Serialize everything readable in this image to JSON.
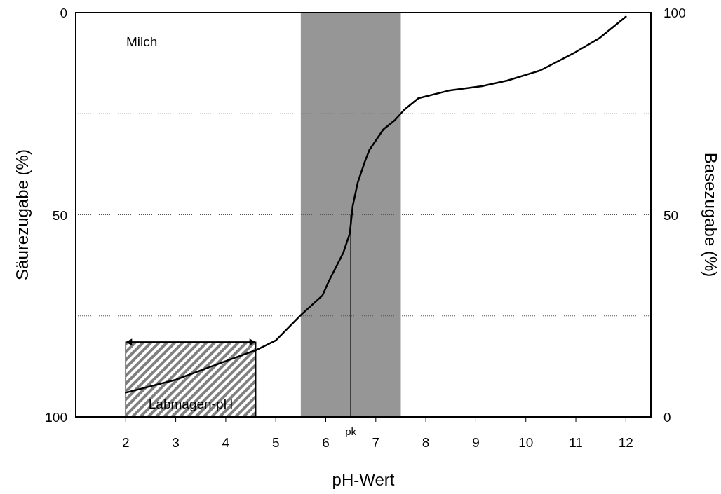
{
  "chart_data": {
    "type": "line",
    "xlabel": "pH-Wert",
    "ylabel": "Säurezugabe (%)",
    "y2label": "Basezugabe (%)",
    "xlim": [
      1,
      12.5
    ],
    "xticks": [
      2,
      3,
      4,
      5,
      6,
      7,
      8,
      9,
      10,
      11,
      12
    ],
    "ylim": [
      100,
      0
    ],
    "yticks": [
      0,
      {
        "value": 25,
        "label": null
      },
      50,
      {
        "value": 75,
        "label": null
      },
      100
    ],
    "y2lim": [
      0,
      100
    ],
    "y2ticks": [
      0,
      50,
      100
    ],
    "grid": "y",
    "marker": "none",
    "line_style": "solid",
    "series": [
      {
        "color": "#000000",
        "x": [
          2,
          3,
          4,
          4.6,
          5,
          5.5,
          5.93,
          6.07,
          6.35,
          6.48,
          6.54,
          6.64,
          6.78,
          6.87,
          7.15,
          7.38,
          7.57,
          7.85,
          8.46,
          9.12,
          9.63,
          10.29,
          10.99,
          11.46,
          12
        ],
        "values": [
          94,
          90.8,
          86.2,
          83.5,
          81.1,
          74.8,
          70,
          66.2,
          59.4,
          54.6,
          47.7,
          42,
          36.9,
          34,
          28.9,
          26.6,
          24,
          21.2,
          19.3,
          18.2,
          16.8,
          14.3,
          9.8,
          6.4,
          1
        ]
      }
    ],
    "bands": [
      {
        "axis": "x",
        "from": 5.5,
        "to": 7.5,
        "color": "#969696"
      },
      {
        "axis": "x",
        "from": 2,
        "to": 4.6,
        "label": "Labmagen-pH"
      }
    ],
    "ref_lines": [
      {
        "axis": "x",
        "value": 6.5,
        "label": "pk",
        "color": "#000000"
      }
    ],
    "annotations": [
      "Milch"
    ]
  }
}
